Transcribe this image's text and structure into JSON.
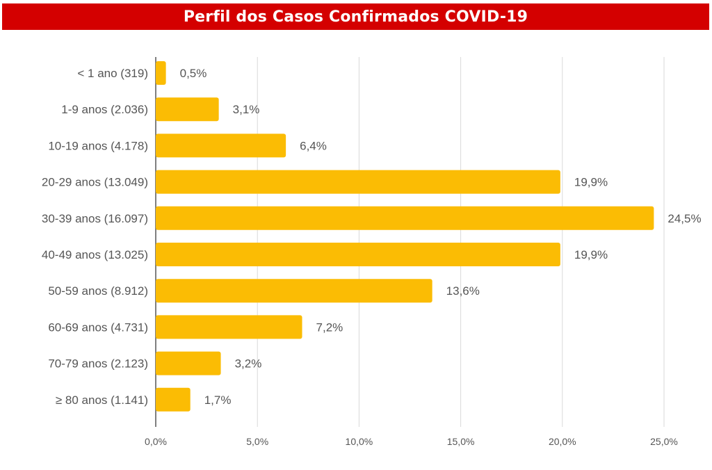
{
  "header": {
    "title": "Perfil dos Casos Confirmados COVID-19"
  },
  "colors": {
    "title_bg": "#d40000",
    "bar": "#fbbc04",
    "grid": "#d9d9d9",
    "axis": "#555555"
  },
  "chart_data": {
    "type": "bar",
    "orientation": "horizontal",
    "title": "Perfil dos Casos Confirmados COVID-19",
    "categories": [
      "< 1 ano (319)",
      "1-9 anos (2.036)",
      "10-19 anos (4.178)",
      "20-29 anos (13.049)",
      "30-39 anos (16.097)",
      "40-49 anos (13.025)",
      "50-59 anos (8.912)",
      "60-69 anos (4.731)",
      "70-79 anos (2.123)",
      "≥ 80 anos (1.141)"
    ],
    "values": [
      0.5,
      3.1,
      6.4,
      19.9,
      24.5,
      19.9,
      13.6,
      7.2,
      3.2,
      1.7
    ],
    "value_labels": [
      "0,5%",
      "3,1%",
      "6,4%",
      "19,9%",
      "24,5%",
      "19,9%",
      "13,6%",
      "7,2%",
      "3,2%",
      "1,7%"
    ],
    "xticks": [
      0,
      5,
      10,
      15,
      20,
      25
    ],
    "xtick_labels": [
      "0,0%",
      "5,0%",
      "10,0%",
      "15,0%",
      "20,0%",
      "25,0%"
    ],
    "xlim": [
      0,
      25
    ],
    "xlabel": "",
    "ylabel": "",
    "grid": true,
    "legend": "none"
  }
}
